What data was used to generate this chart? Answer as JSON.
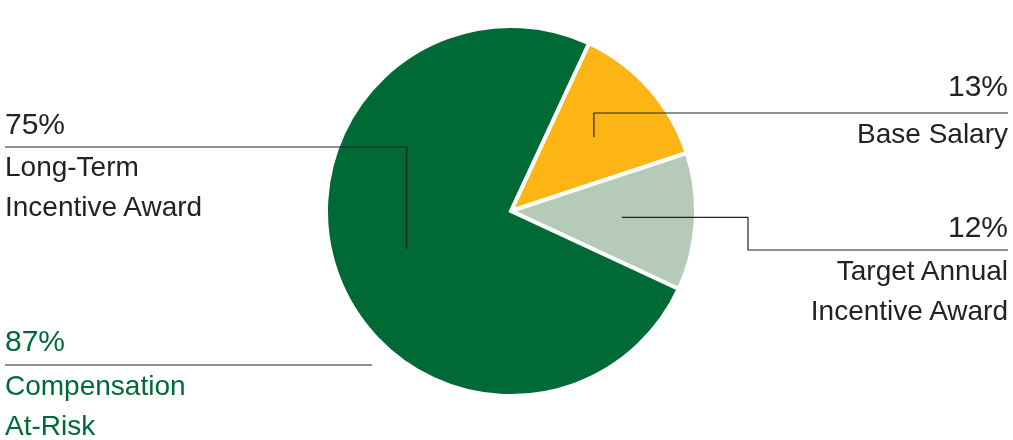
{
  "chart_data": {
    "type": "pie",
    "categories": [
      "Base Salary",
      "Target Annual Incentive Award",
      "Long-Term Incentive Award"
    ],
    "values": [
      13,
      12,
      75
    ],
    "colors": [
      "#fdb515",
      "#b5cbb7",
      "#006a36"
    ],
    "value_labels": [
      "13%",
      "12%",
      "75%"
    ],
    "annotations": [
      "87%",
      "Compensation At-Risk"
    ]
  }
}
